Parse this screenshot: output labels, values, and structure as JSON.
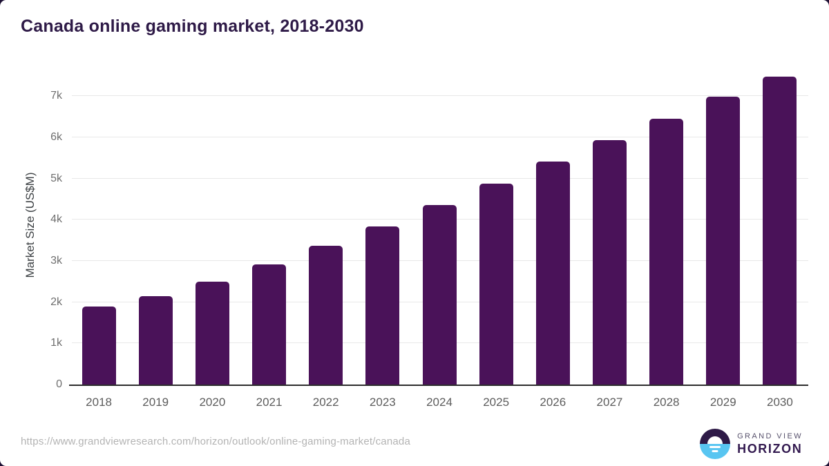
{
  "chart_data": {
    "type": "bar",
    "title": "Canada online gaming market, 2018-2030",
    "categories": [
      "2018",
      "2019",
      "2020",
      "2021",
      "2022",
      "2023",
      "2024",
      "2025",
      "2026",
      "2027",
      "2028",
      "2029",
      "2030"
    ],
    "values": [
      1890,
      2150,
      2500,
      2910,
      3370,
      3840,
      4350,
      4880,
      5410,
      5930,
      6450,
      6980,
      7480
    ],
    "xlabel": "",
    "ylabel": "Market Size (US$M)",
    "ylim": [
      0,
      7740
    ],
    "yticks": [
      {
        "label": "0",
        "value": 0
      },
      {
        "label": "1k",
        "value": 1000
      },
      {
        "label": "2k",
        "value": 2000
      },
      {
        "label": "3k",
        "value": 3000
      },
      {
        "label": "4k",
        "value": 4000
      },
      {
        "label": "5k",
        "value": 5000
      },
      {
        "label": "6k",
        "value": 6000
      },
      {
        "label": "7k",
        "value": 7000
      }
    ],
    "grid": true,
    "legend_position": "none",
    "bar_color": "#4a1259"
  },
  "colors": {
    "title_text": "#2e1a47",
    "axis_title_text": "#3c4043",
    "tick_label_text": "#6e6e6e",
    "x_label_text": "#5c5c5c",
    "gridline": "#e8e8e8",
    "axis_line": "#2d2d2d",
    "url_text": "#b3b3b3"
  },
  "footer": {
    "source_url": "https://www.grandviewresearch.com/horizon/outlook/online-gaming-market/canada",
    "logo": {
      "line1": "GRAND VIEW",
      "line2": "HORIZON",
      "icon": "sunrise-horizon-icon",
      "icon_top_color": "#2e1a47",
      "icon_bottom_color": "#58c5f1",
      "line1_color": "#56506b",
      "line2_color": "#32194f"
    }
  }
}
